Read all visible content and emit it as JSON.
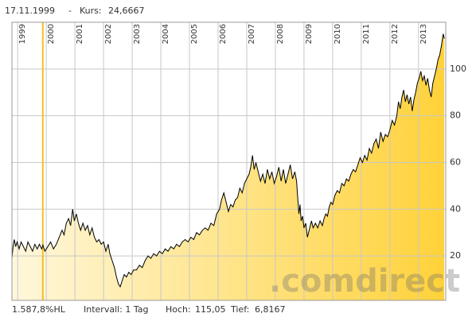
{
  "chart_data": {
    "type": "line",
    "header": {
      "date": "17.11.1999",
      "separator": "-",
      "price_label": "Kurs:",
      "price": "24,6667"
    },
    "footer": {
      "performance": "1.587,8%HL",
      "interval": "Intervall: 1 Tag",
      "high_label": "Hoch:",
      "high": "115,05",
      "low_label": "Tief:",
      "low": "6,8167"
    },
    "watermark": ".comdirect",
    "x": [
      1998.8,
      1998.84,
      1998.88,
      1998.93,
      1998.98,
      1999.05,
      1999.12,
      1999.2,
      1999.28,
      1999.36,
      1999.44,
      1999.52,
      1999.6,
      1999.68,
      1999.76,
      1999.84,
      1999.88,
      1999.95,
      2000.05,
      2000.15,
      2000.25,
      2000.35,
      2000.45,
      2000.55,
      2000.62,
      2000.7,
      2000.78,
      2000.85,
      2000.92,
      2000.98,
      2001.05,
      2001.12,
      2001.2,
      2001.28,
      2001.36,
      2001.44,
      2001.52,
      2001.6,
      2001.68,
      2001.76,
      2001.84,
      2001.92,
      2002.0,
      2002.08,
      2002.16,
      2002.22,
      2002.3,
      2002.38,
      2002.45,
      2002.52,
      2002.58,
      2002.64,
      2002.72,
      2002.8,
      2002.88,
      2002.96,
      2003.05,
      2003.15,
      2003.25,
      2003.35,
      2003.45,
      2003.55,
      2003.65,
      2003.75,
      2003.85,
      2003.95,
      2004.05,
      2004.15,
      2004.25,
      2004.35,
      2004.45,
      2004.55,
      2004.65,
      2004.75,
      2004.85,
      2004.95,
      2005.05,
      2005.15,
      2005.25,
      2005.35,
      2005.45,
      2005.55,
      2005.65,
      2005.75,
      2005.85,
      2005.95,
      2006.05,
      2006.12,
      2006.2,
      2006.28,
      2006.36,
      2006.44,
      2006.52,
      2006.6,
      2006.68,
      2006.76,
      2006.84,
      2006.92,
      2007.0,
      2007.08,
      2007.14,
      2007.2,
      2007.26,
      2007.32,
      2007.4,
      2007.48,
      2007.56,
      2007.64,
      2007.72,
      2007.8,
      2007.88,
      2007.96,
      2008.04,
      2008.12,
      2008.2,
      2008.28,
      2008.36,
      2008.44,
      2008.52,
      2008.6,
      2008.68,
      2008.74,
      2008.78,
      2008.82,
      2008.86,
      2008.9,
      2008.95,
      2009.0,
      2009.06,
      2009.12,
      2009.18,
      2009.26,
      2009.32,
      2009.4,
      2009.48,
      2009.56,
      2009.64,
      2009.7,
      2009.76,
      2009.82,
      2009.88,
      2009.94,
      2010.0,
      2010.08,
      2010.16,
      2010.24,
      2010.32,
      2010.4,
      2010.48,
      2010.56,
      2010.64,
      2010.72,
      2010.8,
      2010.88,
      2010.96,
      2011.04,
      2011.12,
      2011.2,
      2011.28,
      2011.36,
      2011.44,
      2011.52,
      2011.6,
      2011.68,
      2011.76,
      2011.84,
      2011.92,
      2012.0,
      2012.08,
      2012.16,
      2012.24,
      2012.3,
      2012.36,
      2012.42,
      2012.48,
      2012.54,
      2012.6,
      2012.66,
      2012.72,
      2012.78,
      2012.84,
      2012.9,
      2012.96,
      2013.02,
      2013.08,
      2013.14,
      2013.2,
      2013.26,
      2013.32,
      2013.38,
      2013.44,
      2013.5,
      2013.56,
      2013.62,
      2013.68,
      2013.74,
      2013.8,
      2013.86,
      2013.9
    ],
    "values": [
      19,
      24,
      27,
      24,
      26,
      23,
      26,
      24,
      22,
      26,
      24,
      22,
      25,
      23,
      25,
      23,
      24.67,
      22,
      24,
      26,
      23,
      25,
      28,
      31,
      29,
      34,
      36,
      33,
      40,
      35,
      38,
      34,
      31,
      34,
      31,
      33,
      29,
      32,
      28,
      26,
      27,
      25,
      26,
      22,
      25,
      21,
      18,
      15,
      11,
      8,
      6.82,
      9,
      12,
      11,
      13,
      12,
      14,
      14,
      16,
      15,
      18,
      20,
      19,
      21,
      20,
      22,
      21,
      23,
      22,
      24,
      23,
      25,
      24,
      26,
      27,
      26,
      28,
      27,
      30,
      29,
      31,
      32,
      31,
      34,
      33,
      38,
      40,
      44,
      47,
      43,
      39,
      42,
      41,
      44,
      45,
      49,
      47,
      51,
      53,
      55,
      58,
      63,
      57,
      60,
      56,
      52,
      55,
      51,
      57,
      53,
      56,
      51,
      54,
      58,
      52,
      57,
      51,
      55,
      59,
      53,
      56,
      52,
      45,
      38,
      42,
      35,
      37,
      32,
      34,
      28,
      31,
      35,
      32,
      34,
      32,
      35,
      33,
      36,
      38,
      37,
      41,
      43,
      42,
      46,
      48,
      47,
      51,
      50,
      53,
      52,
      55,
      57,
      56,
      59,
      62,
      60,
      63,
      61,
      66,
      64,
      68,
      70,
      66,
      73,
      69,
      72,
      71,
      74,
      78,
      76,
      80,
      86,
      83,
      88,
      91,
      86,
      89,
      85,
      88,
      82,
      87,
      90,
      94,
      96,
      99,
      95,
      97,
      93,
      96,
      91,
      88,
      94,
      97,
      100,
      104,
      106,
      110,
      115.05,
      113
    ],
    "color": "#000000",
    "xlim": [
      1998.8,
      2013.95
    ],
    "xticks": [
      1999,
      2000,
      2001,
      2002,
      2003,
      2004,
      2005,
      2006,
      2007,
      2008,
      2009,
      2010,
      2011,
      2012,
      2013
    ],
    "ylim": [
      1,
      120
    ],
    "yticks": [
      20,
      40,
      60,
      80,
      100
    ],
    "grid": true
  }
}
